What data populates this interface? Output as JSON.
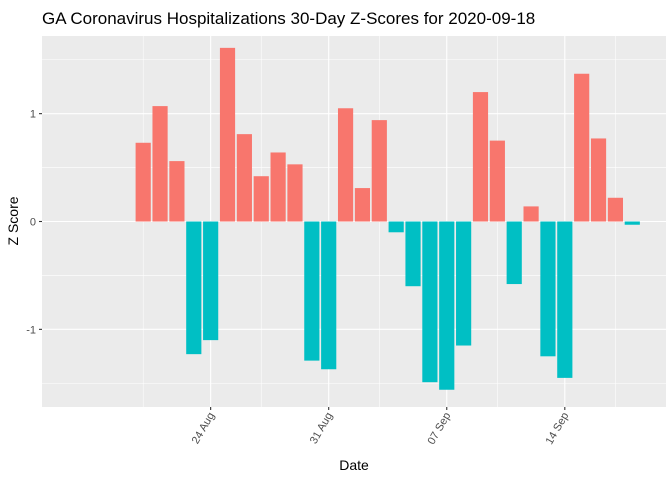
{
  "chart_data": {
    "type": "bar",
    "title": "GA Coronavirus Hospitalizations 30-Day Z-Scores for 2020-09-18",
    "xlabel": "Date",
    "ylabel": "Z Score",
    "ylim": [
      -1.72,
      1.72
    ],
    "yticks": [
      -1,
      0,
      1
    ],
    "ytick_labels": [
      "-1",
      "0",
      "1"
    ],
    "xlim": [
      "2020-08-14",
      "2020-09-20"
    ],
    "xticks": [
      "2020-08-24",
      "2020-08-31",
      "2020-09-07",
      "2020-09-14"
    ],
    "xtick_labels": [
      "24 Aug",
      "31 Aug",
      "07 Sep",
      "14 Sep"
    ],
    "x_minor_breaks": [
      "2020-08-20",
      "2020-08-27",
      "2020-09-03",
      "2020-09-10",
      "2020-09-17"
    ],
    "grid": true,
    "legend": "none",
    "colors": {
      "positive": "#F8766D",
      "negative": "#00BFC4",
      "panel": "#EBEBEB",
      "grid": "#FFFFFF",
      "text": "#000000",
      "tick_text": "#4D4D4D"
    },
    "x": [
      "2020-08-20",
      "2020-08-21",
      "2020-08-22",
      "2020-08-23",
      "2020-08-24",
      "2020-08-25",
      "2020-08-26",
      "2020-08-27",
      "2020-08-28",
      "2020-08-29",
      "2020-08-30",
      "2020-08-31",
      "2020-09-01",
      "2020-09-02",
      "2020-09-03",
      "2020-09-04",
      "2020-09-05",
      "2020-09-06",
      "2020-09-07",
      "2020-09-08",
      "2020-09-09",
      "2020-09-10",
      "2020-09-11",
      "2020-09-12",
      "2020-09-13",
      "2020-09-14",
      "2020-09-15",
      "2020-09-16",
      "2020-09-17",
      "2020-09-18"
    ],
    "values": [
      0.73,
      1.07,
      0.56,
      -1.23,
      -1.1,
      1.61,
      0.81,
      0.42,
      0.64,
      0.53,
      -1.29,
      -1.37,
      1.05,
      0.31,
      0.94,
      -0.1,
      -0.6,
      -1.49,
      -1.56,
      -1.15,
      1.2,
      0.75,
      -0.58,
      0.14,
      -1.25,
      -1.45,
      1.37,
      0.77,
      0.22,
      -0.03
    ]
  }
}
